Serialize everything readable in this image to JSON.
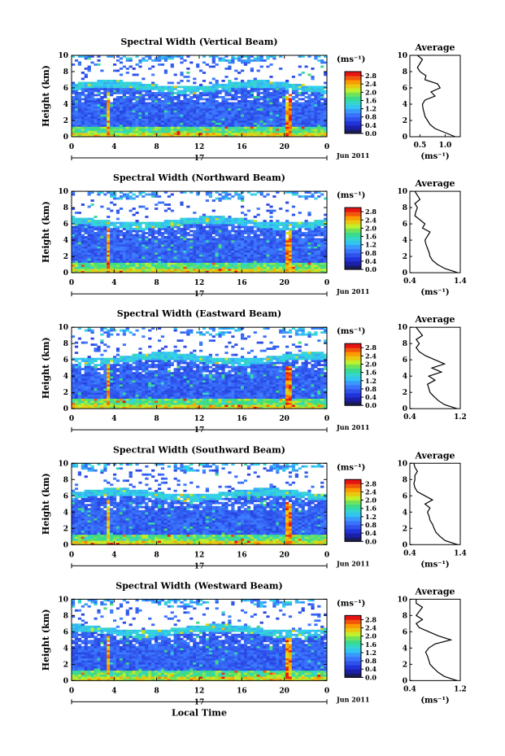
{
  "chart_data": [
    {
      "type": "heatmap",
      "title": "Spectral Width (Vertical Beam)",
      "ylabel": "Height (km)",
      "x_ticks": [
        "0",
        "4",
        "8",
        "12",
        "16",
        "20",
        "0"
      ],
      "y_ticks": [
        "0",
        "2",
        "4",
        "6",
        "8",
        "10"
      ],
      "xlim": [
        0,
        24
      ],
      "ylim": [
        0,
        10
      ],
      "day_label": "17",
      "date_label": "Jun 2011",
      "colorbar": {
        "unit": "(ms⁻¹)",
        "ticks": [
          "0.0",
          "0.4",
          "0.8",
          "1.2",
          "1.6",
          "2.0",
          "2.4",
          "2.8"
        ],
        "range": [
          0.0,
          3.0
        ]
      },
      "profile": {
        "title": "Average",
        "xlabel": "(ms⁻¹)",
        "x_ticks": [
          "0.5",
          "1.0"
        ],
        "xlim": [
          0.3,
          1.3
        ],
        "x": [
          1.2,
          1.0,
          0.8,
          0.7,
          0.65,
          0.6,
          0.58,
          0.56,
          0.55,
          0.6,
          0.8,
          0.72,
          0.9,
          0.85,
          0.6,
          0.62,
          0.5,
          0.45,
          0.5,
          0.55,
          0.45
        ],
        "y": [
          0,
          0.5,
          1,
          1.5,
          2,
          2.5,
          3,
          3.5,
          4,
          4.5,
          5,
          5.5,
          6,
          6.5,
          7,
          7.5,
          8,
          8.5,
          9,
          9.5,
          10
        ]
      }
    },
    {
      "type": "heatmap",
      "title": "Spectral Width (Northward Beam)",
      "ylabel": "Height (km)",
      "x_ticks": [
        "0",
        "4",
        "8",
        "12",
        "16",
        "20",
        "0"
      ],
      "y_ticks": [
        "0",
        "2",
        "4",
        "6",
        "8",
        "10"
      ],
      "xlim": [
        0,
        24
      ],
      "ylim": [
        0,
        10
      ],
      "day_label": "17",
      "date_label": "Jun 2011",
      "colorbar": {
        "unit": "(ms⁻¹)",
        "ticks": [
          "0.0",
          "0.4",
          "0.8",
          "1.2",
          "1.6",
          "2.0",
          "2.4",
          "2.8"
        ],
        "range": [
          0.0,
          3.0
        ]
      },
      "profile": {
        "title": "Average",
        "xlabel": "(ms⁻¹)",
        "x_ticks": [
          "0.4",
          "1.4"
        ],
        "xlim": [
          0.4,
          1.4
        ],
        "x": [
          1.35,
          1.1,
          0.95,
          0.85,
          0.8,
          0.78,
          0.75,
          0.72,
          0.7,
          0.75,
          0.8,
          0.65,
          0.7,
          0.6,
          0.5,
          0.52,
          0.55,
          0.5,
          0.6,
          0.55,
          0.5
        ],
        "y": [
          0,
          0.5,
          1,
          1.5,
          2,
          2.5,
          3,
          3.5,
          4,
          4.5,
          5,
          5.5,
          6,
          6.5,
          7,
          7.5,
          8,
          8.5,
          9,
          9.5,
          10
        ]
      }
    },
    {
      "type": "heatmap",
      "title": "Spectral Width (Eastward Beam)",
      "ylabel": "Height (km)",
      "x_ticks": [
        "0",
        "4",
        "8",
        "12",
        "16",
        "20",
        "0"
      ],
      "y_ticks": [
        "0",
        "2",
        "4",
        "6",
        "8",
        "10"
      ],
      "xlim": [
        0,
        24
      ],
      "ylim": [
        0,
        10
      ],
      "day_label": "17",
      "date_label": "Jun 2011",
      "colorbar": {
        "unit": "(ms⁻¹)",
        "ticks": [
          "0.0",
          "0.4",
          "0.8",
          "1.2",
          "1.6",
          "2.0",
          "2.4",
          "2.8"
        ],
        "range": [
          0.0,
          3.0
        ]
      },
      "profile": {
        "title": "Average",
        "xlabel": "",
        "x_ticks": [
          "0.4",
          "1.2"
        ],
        "xlim": [
          0.4,
          1.2
        ],
        "x": [
          1.15,
          0.95,
          0.85,
          0.78,
          0.72,
          0.7,
          0.68,
          0.8,
          0.7,
          0.9,
          0.75,
          0.95,
          0.8,
          0.65,
          0.55,
          0.5,
          0.55,
          0.5,
          0.6,
          0.55,
          0.5
        ],
        "y": [
          0,
          0.5,
          1,
          1.5,
          2,
          2.5,
          3,
          3.5,
          4,
          4.5,
          5,
          5.5,
          6,
          6.5,
          7,
          7.5,
          8,
          8.5,
          9,
          9.5,
          10
        ]
      }
    },
    {
      "type": "heatmap",
      "title": "Spectral Width (Southward Beam)",
      "ylabel": "Height (km)",
      "x_ticks": [
        "0",
        "4",
        "8",
        "12",
        "16",
        "20",
        "0"
      ],
      "y_ticks": [
        "0",
        "2",
        "4",
        "6",
        "8",
        "10"
      ],
      "xlim": [
        0,
        24
      ],
      "ylim": [
        0,
        10
      ],
      "day_label": "17",
      "date_label": "Jun 2011",
      "colorbar": {
        "unit": "(ms⁻¹)",
        "ticks": [
          "0.0",
          "0.4",
          "0.8",
          "1.2",
          "1.6",
          "2.0",
          "2.4",
          "2.8"
        ],
        "range": [
          0.0,
          3.0
        ]
      },
      "profile": {
        "title": "Average",
        "xlabel": "(ms⁻¹)",
        "x_ticks": [
          "0.4",
          "1.4"
        ],
        "xlim": [
          0.4,
          1.4
        ],
        "x": [
          1.35,
          1.1,
          1.0,
          0.92,
          0.88,
          0.85,
          0.8,
          0.78,
          0.75,
          0.8,
          0.7,
          0.85,
          0.7,
          0.55,
          0.5,
          0.48,
          0.5,
          0.5,
          0.55,
          0.5,
          0.48
        ],
        "y": [
          0,
          0.5,
          1,
          1.5,
          2,
          2.5,
          3,
          3.5,
          4,
          4.5,
          5,
          5.5,
          6,
          6.5,
          7,
          7.5,
          8,
          8.5,
          9,
          9.5,
          10
        ]
      }
    },
    {
      "type": "heatmap",
      "title": "Spectral Width (Westward Beam)",
      "ylabel": "Height (km)",
      "xlabel": "Local Time",
      "x_ticks": [
        "0",
        "4",
        "8",
        "12",
        "16",
        "20",
        "0"
      ],
      "y_ticks": [
        "0",
        "2",
        "4",
        "6",
        "8",
        "10"
      ],
      "xlim": [
        0,
        24
      ],
      "ylim": [
        0,
        10
      ],
      "day_label": "17",
      "date_label": "Jun 2011",
      "colorbar": {
        "unit": "(ms⁻¹)",
        "ticks": [
          "0.0",
          "0.4",
          "0.8",
          "1.2",
          "1.6",
          "2.0",
          "2.4",
          "2.8"
        ],
        "range": [
          0.0,
          3.0
        ]
      },
      "profile": {
        "title": "Average",
        "xlabel": "(ms⁻¹)",
        "x_ticks": [
          "0.4",
          "1.2"
        ],
        "xlim": [
          0.4,
          1.2
        ],
        "x": [
          1.15,
          0.95,
          0.85,
          0.78,
          0.72,
          0.7,
          0.68,
          0.65,
          0.7,
          0.8,
          1.05,
          0.85,
          0.7,
          0.55,
          0.5,
          0.6,
          0.5,
          0.55,
          0.6,
          0.5,
          0.5
        ],
        "y": [
          0,
          0.5,
          1,
          1.5,
          2,
          2.5,
          3,
          3.5,
          4,
          4.5,
          5,
          5.5,
          6,
          6.5,
          7,
          7.5,
          8,
          8.5,
          9,
          9.5,
          10
        ]
      }
    }
  ]
}
